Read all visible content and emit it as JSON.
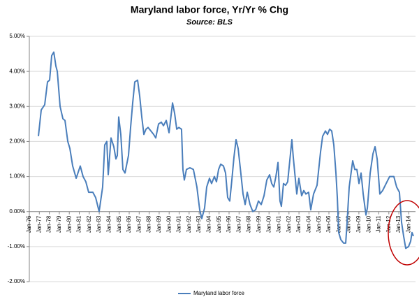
{
  "chart_data": {
    "type": "line",
    "title": "Maryland labor force, Yr/Yr % Chg",
    "subtitle": "Source: BLS",
    "xlim": [
      1976,
      2014.67
    ],
    "ylim": [
      -2,
      5
    ],
    "grid": true,
    "legend": "bottom",
    "yticks": [
      {
        "value": -2,
        "label": "-2.00%"
      },
      {
        "value": -1,
        "label": "-1.00%"
      },
      {
        "value": 0,
        "label": "0.00%"
      },
      {
        "value": 1,
        "label": "1.00%"
      },
      {
        "value": 2,
        "label": "2.00%"
      },
      {
        "value": 3,
        "label": "3.00%"
      },
      {
        "value": 4,
        "label": "4.00%"
      },
      {
        "value": 5,
        "label": "5.00%"
      }
    ],
    "xticks": [
      {
        "value": 1976,
        "label": "Jan-76"
      },
      {
        "value": 1977,
        "label": "Jan-77"
      },
      {
        "value": 1978,
        "label": "Jan-78"
      },
      {
        "value": 1979,
        "label": "Jan-79"
      },
      {
        "value": 1980,
        "label": "Jan-80"
      },
      {
        "value": 1981,
        "label": "Jan-81"
      },
      {
        "value": 1982,
        "label": "Jan-82"
      },
      {
        "value": 1983,
        "label": "Jan-83"
      },
      {
        "value": 1984,
        "label": "Jan-84"
      },
      {
        "value": 1985,
        "label": "Jan-85"
      },
      {
        "value": 1986,
        "label": "Jan-86"
      },
      {
        "value": 1987,
        "label": "Jan-87"
      },
      {
        "value": 1988,
        "label": "Jan-88"
      },
      {
        "value": 1989,
        "label": "Jan-89"
      },
      {
        "value": 1990,
        "label": "Jan-90"
      },
      {
        "value": 1991,
        "label": "Jan-91"
      },
      {
        "value": 1992,
        "label": "Jan-92"
      },
      {
        "value": 1993,
        "label": "Jan-93"
      },
      {
        "value": 1994,
        "label": "Jan-94"
      },
      {
        "value": 1995,
        "label": "Jan-95"
      },
      {
        "value": 1996,
        "label": "Jan-96"
      },
      {
        "value": 1997,
        "label": "Jan-97"
      },
      {
        "value": 1998,
        "label": "Jan-98"
      },
      {
        "value": 1999,
        "label": "Jan-99"
      },
      {
        "value": 2000,
        "label": "Jan-00"
      },
      {
        "value": 2001,
        "label": "Jan-01"
      },
      {
        "value": 2002,
        "label": "Jan-02"
      },
      {
        "value": 2003,
        "label": "Jan-03"
      },
      {
        "value": 2004,
        "label": "Jan-04"
      },
      {
        "value": 2005,
        "label": "Jan-05"
      },
      {
        "value": 2006,
        "label": "Jan-06"
      },
      {
        "value": 2007,
        "label": "Jan-07"
      },
      {
        "value": 2008,
        "label": "Jan-08"
      },
      {
        "value": 2009,
        "label": "Jan-09"
      },
      {
        "value": 2010,
        "label": "Jan-10"
      },
      {
        "value": 2011,
        "label": "Jan-11"
      },
      {
        "value": 2012,
        "label": "Jan-12"
      },
      {
        "value": 2013,
        "label": "Jan-13"
      },
      {
        "value": 2014,
        "label": "Jan-14"
      }
    ],
    "x": [
      1976.91,
      1977.19,
      1977.54,
      1977.82,
      1978.03,
      1978.24,
      1978.45,
      1978.66,
      1978.8,
      1979.08,
      1979.36,
      1979.57,
      1979.85,
      1980.06,
      1980.34,
      1980.69,
      1981.1,
      1981.38,
      1981.66,
      1981.94,
      1982.36,
      1982.64,
      1982.99,
      1983.34,
      1983.55,
      1983.76,
      1983.9,
      1984.18,
      1984.46,
      1984.67,
      1984.81,
      1984.95,
      1985.16,
      1985.37,
      1985.58,
      1985.93,
      1986.14,
      1986.35,
      1986.56,
      1986.84,
      1987.05,
      1987.26,
      1987.47,
      1987.68,
      1987.89,
      1988.17,
      1988.45,
      1988.66,
      1988.94,
      1989.22,
      1989.43,
      1989.71,
      1989.99,
      1990.34,
      1990.55,
      1990.76,
      1990.97,
      1991.24,
      1991.38,
      1991.52,
      1991.73,
      1992.08,
      1992.43,
      1992.78,
      1993.06,
      1993.27,
      1993.55,
      1993.76,
      1994.04,
      1994.25,
      1994.53,
      1994.74,
      1994.95,
      1995.16,
      1995.44,
      1995.65,
      1995.86,
      1996.07,
      1996.28,
      1996.49,
      1996.7,
      1996.91,
      1997.12,
      1997.4,
      1997.61,
      1997.82,
      1998.1,
      1998.38,
      1998.66,
      1998.94,
      1999.22,
      1999.5,
      1999.78,
      2000.06,
      2000.27,
      2000.48,
      2000.69,
      2000.9,
      2001.1,
      2001.24,
      2001.45,
      2001.66,
      2001.87,
      2002.29,
      2002.43,
      2002.78,
      2002.99,
      2003.27,
      2003.48,
      2003.69,
      2003.97,
      2004.18,
      2004.46,
      2004.81,
      2005.16,
      2005.37,
      2005.65,
      2005.86,
      2006.07,
      2006.28,
      2006.49,
      2006.7,
      2006.84,
      2006.98,
      2007.19,
      2007.47,
      2007.68,
      2007.82,
      2008.03,
      2008.38,
      2008.59,
      2008.8,
      2009.01,
      2009.22,
      2009.43,
      2009.71,
      2009.85,
      2010.13,
      2010.41,
      2010.62,
      2010.83,
      2011.1,
      2011.38,
      2011.73,
      2012.08,
      2012.5,
      2012.78,
      2013.06,
      2013.27,
      2013.48,
      2013.69,
      2013.97,
      2014.18,
      2014.32,
      2014.46
    ],
    "series": [
      {
        "name": "Maryland labor force",
        "color": "#4a7ebb",
        "values": [
          2.15,
          2.9,
          3.05,
          3.7,
          3.75,
          4.45,
          4.55,
          4.15,
          4.0,
          3.0,
          2.65,
          2.6,
          2.0,
          1.8,
          1.3,
          0.95,
          1.3,
          1.0,
          0.85,
          0.55,
          0.55,
          0.4,
          0.0,
          0.7,
          1.9,
          2.0,
          1.05,
          2.1,
          1.85,
          1.5,
          1.6,
          2.7,
          2.2,
          1.2,
          1.1,
          1.6,
          2.4,
          3.1,
          3.7,
          3.75,
          3.3,
          2.7,
          2.2,
          2.35,
          2.4,
          2.3,
          2.2,
          2.1,
          2.5,
          2.55,
          2.45,
          2.6,
          2.25,
          3.1,
          2.8,
          2.35,
          2.4,
          2.35,
          1.2,
          0.9,
          1.2,
          1.25,
          1.2,
          0.7,
          0.05,
          -0.2,
          0.1,
          0.7,
          0.95,
          0.8,
          1.0,
          0.85,
          1.2,
          1.35,
          1.3,
          1.1,
          0.4,
          0.3,
          0.9,
          1.55,
          2.05,
          1.8,
          1.25,
          0.5,
          0.2,
          0.55,
          0.2,
          0.0,
          0.05,
          0.3,
          0.2,
          0.45,
          0.9,
          1.05,
          0.8,
          0.7,
          1.0,
          1.4,
          0.3,
          0.15,
          0.8,
          0.75,
          0.85,
          2.05,
          1.55,
          0.5,
          0.95,
          0.45,
          0.6,
          0.5,
          0.55,
          0.05,
          0.5,
          0.75,
          1.7,
          2.15,
          2.3,
          2.2,
          2.35,
          2.3,
          1.9,
          1.1,
          0.4,
          -0.6,
          -0.8,
          -0.9,
          -0.9,
          -0.3,
          0.7,
          1.45,
          1.2,
          1.2,
          0.8,
          1.1,
          0.5,
          -0.1,
          0.1,
          1.1,
          1.65,
          1.85,
          1.5,
          0.5,
          0.6,
          0.8,
          1.0,
          1.0,
          0.7,
          0.55,
          -0.3,
          -0.7,
          -1.05,
          -1.0,
          -0.85,
          -0.6,
          -0.7
        ]
      }
    ]
  }
}
